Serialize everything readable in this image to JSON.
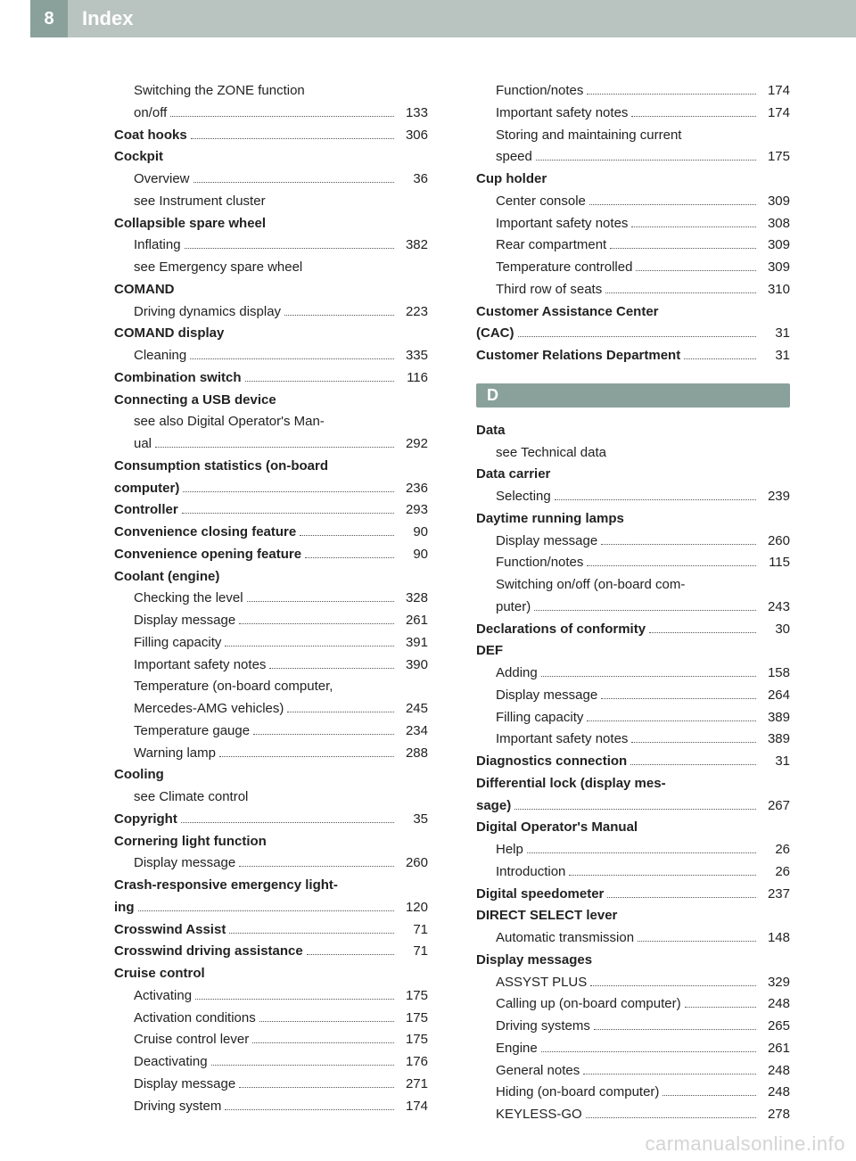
{
  "page_number": "8",
  "page_title": "Index",
  "watermark": "carmanualsonline.info",
  "letter_d": "D",
  "left": [
    {
      "t": "sub",
      "label": "Switching the ZONE function",
      "nopage": true
    },
    {
      "t": "sub",
      "label": "on/off",
      "page": "133"
    },
    {
      "t": "top",
      "bold": true,
      "label": "Coat hooks",
      "page": "306"
    },
    {
      "t": "top",
      "bold": true,
      "label": "Cockpit",
      "nopage": true
    },
    {
      "t": "sub",
      "label": "Overview",
      "page": "36"
    },
    {
      "t": "sub",
      "label": "see Instrument cluster",
      "nopage": true
    },
    {
      "t": "top",
      "bold": true,
      "label": "Collapsible spare wheel",
      "nopage": true
    },
    {
      "t": "sub",
      "label": "Inflating",
      "page": "382"
    },
    {
      "t": "sub",
      "label": "see Emergency spare wheel",
      "nopage": true
    },
    {
      "t": "top",
      "bold": true,
      "label": "COMAND",
      "nopage": true
    },
    {
      "t": "sub",
      "label": "Driving dynamics display",
      "page": "223"
    },
    {
      "t": "top",
      "bold": true,
      "label": "COMAND display",
      "nopage": true
    },
    {
      "t": "sub",
      "label": "Cleaning",
      "page": "335"
    },
    {
      "t": "top",
      "bold": true,
      "label": "Combination switch",
      "page": "116"
    },
    {
      "t": "top",
      "bold": true,
      "label": "Connecting a USB device",
      "nopage": true
    },
    {
      "t": "sub",
      "label": "see also Digital Operator's Man-",
      "nopage": true
    },
    {
      "t": "sub",
      "label": "ual",
      "page": "292"
    },
    {
      "t": "top",
      "bold": true,
      "label": "Consumption statistics (on-board",
      "nopage": true
    },
    {
      "t": "top",
      "bold": true,
      "label": "computer)",
      "page": "236"
    },
    {
      "t": "top",
      "bold": true,
      "label": "Controller",
      "page": "293"
    },
    {
      "t": "top",
      "bold": true,
      "label": "Convenience closing feature",
      "page": "90"
    },
    {
      "t": "top",
      "bold": true,
      "label": "Convenience opening feature",
      "page": "90"
    },
    {
      "t": "top",
      "bold": true,
      "label": "Coolant (engine)",
      "nopage": true
    },
    {
      "t": "sub",
      "label": "Checking the level",
      "page": "328"
    },
    {
      "t": "sub",
      "label": "Display message",
      "page": "261"
    },
    {
      "t": "sub",
      "label": "Filling capacity",
      "page": "391"
    },
    {
      "t": "sub",
      "label": "Important safety notes",
      "page": "390"
    },
    {
      "t": "sub",
      "label": "Temperature (on-board computer,",
      "nopage": true
    },
    {
      "t": "sub",
      "label": "Mercedes-AMG vehicles)",
      "page": "245"
    },
    {
      "t": "sub",
      "label": "Temperature gauge",
      "page": "234"
    },
    {
      "t": "sub",
      "label": "Warning lamp",
      "page": "288"
    },
    {
      "t": "top",
      "bold": true,
      "label": "Cooling",
      "nopage": true
    },
    {
      "t": "sub",
      "label": "see Climate control",
      "nopage": true
    },
    {
      "t": "top",
      "bold": true,
      "label": "Copyright",
      "page": "35"
    },
    {
      "t": "top",
      "bold": true,
      "label": "Cornering light function",
      "nopage": true
    },
    {
      "t": "sub",
      "label": "Display message",
      "page": "260"
    },
    {
      "t": "top",
      "bold": true,
      "label": "Crash-responsive emergency light-",
      "nopage": true
    },
    {
      "t": "top",
      "bold": true,
      "label": "ing",
      "page": "120"
    },
    {
      "t": "top",
      "bold": true,
      "label": "Crosswind Assist",
      "page": "71"
    },
    {
      "t": "top",
      "bold": true,
      "label": "Crosswind driving assistance",
      "page": "71"
    },
    {
      "t": "top",
      "bold": true,
      "label": "Cruise control",
      "nopage": true
    },
    {
      "t": "sub",
      "label": "Activating",
      "page": "175"
    },
    {
      "t": "sub",
      "label": "Activation conditions",
      "page": "175"
    },
    {
      "t": "sub",
      "label": "Cruise control lever",
      "page": "175"
    },
    {
      "t": "sub",
      "label": "Deactivating",
      "page": "176"
    },
    {
      "t": "sub",
      "label": "Display message",
      "page": "271"
    },
    {
      "t": "sub",
      "label": "Driving system",
      "page": "174"
    }
  ],
  "right_a": [
    {
      "t": "sub",
      "label": "Function/notes",
      "page": "174"
    },
    {
      "t": "sub",
      "label": "Important safety notes",
      "page": "174"
    },
    {
      "t": "sub",
      "label": "Storing and maintaining current",
      "nopage": true
    },
    {
      "t": "sub",
      "label": "speed",
      "page": "175"
    },
    {
      "t": "top",
      "bold": true,
      "label": "Cup holder",
      "nopage": true
    },
    {
      "t": "sub",
      "label": "Center console",
      "page": "309"
    },
    {
      "t": "sub",
      "label": "Important safety notes",
      "page": "308"
    },
    {
      "t": "sub",
      "label": "Rear compartment",
      "page": "309"
    },
    {
      "t": "sub",
      "label": "Temperature controlled",
      "page": "309"
    },
    {
      "t": "sub",
      "label": "Third row of seats",
      "page": "310"
    },
    {
      "t": "top",
      "bold": true,
      "label": "Customer Assistance Center",
      "nopage": true
    },
    {
      "t": "top",
      "bold": true,
      "label": "(CAC)",
      "page": "31"
    },
    {
      "t": "top",
      "bold": true,
      "label": "Customer Relations Department",
      "page": "31"
    }
  ],
  "right_b": [
    {
      "t": "top",
      "bold": true,
      "label": "Data",
      "nopage": true
    },
    {
      "t": "sub",
      "label": "see Technical data",
      "nopage": true
    },
    {
      "t": "top",
      "bold": true,
      "label": "Data carrier",
      "nopage": true
    },
    {
      "t": "sub",
      "label": "Selecting",
      "page": "239"
    },
    {
      "t": "top",
      "bold": true,
      "label": "Daytime running lamps",
      "nopage": true
    },
    {
      "t": "sub",
      "label": "Display message",
      "page": "260"
    },
    {
      "t": "sub",
      "label": "Function/notes",
      "page": "115"
    },
    {
      "t": "sub",
      "label": "Switching on/off (on-board com-",
      "nopage": true
    },
    {
      "t": "sub",
      "label": "puter)",
      "page": "243"
    },
    {
      "t": "top",
      "bold": true,
      "label": "Declarations of conformity",
      "page": "30"
    },
    {
      "t": "top",
      "bold": true,
      "label": "DEF",
      "nopage": true
    },
    {
      "t": "sub",
      "label": "Adding",
      "page": "158"
    },
    {
      "t": "sub",
      "label": "Display message",
      "page": "264"
    },
    {
      "t": "sub",
      "label": "Filling capacity",
      "page": "389"
    },
    {
      "t": "sub",
      "label": "Important safety notes",
      "page": "389"
    },
    {
      "t": "top",
      "bold": true,
      "label": "Diagnostics connection",
      "page": "31"
    },
    {
      "t": "top",
      "bold": true,
      "label": "Differential lock (display mes-",
      "nopage": true
    },
    {
      "t": "top",
      "bold": true,
      "label": "sage)",
      "page": "267"
    },
    {
      "t": "top",
      "bold": true,
      "label": "Digital Operator's Manual",
      "nopage": true
    },
    {
      "t": "sub",
      "label": "Help",
      "page": "26"
    },
    {
      "t": "sub",
      "label": "Introduction",
      "page": "26"
    },
    {
      "t": "top",
      "bold": true,
      "label": "Digital speedometer",
      "page": "237"
    },
    {
      "t": "top",
      "bold": true,
      "label": "DIRECT SELECT lever",
      "nopage": true
    },
    {
      "t": "sub",
      "label": "Automatic transmission",
      "page": "148"
    },
    {
      "t": "top",
      "bold": true,
      "label": "Display messages",
      "nopage": true
    },
    {
      "t": "sub",
      "label": "ASSYST PLUS",
      "page": "329"
    },
    {
      "t": "sub",
      "label": "Calling up (on-board computer)",
      "page": "248"
    },
    {
      "t": "sub",
      "label": "Driving systems",
      "page": "265"
    },
    {
      "t": "sub",
      "label": "Engine",
      "page": "261"
    },
    {
      "t": "sub",
      "label": "General notes",
      "page": "248"
    },
    {
      "t": "sub",
      "label": "Hiding (on-board computer)",
      "page": "248"
    },
    {
      "t": "sub",
      "label": "KEYLESS-GO",
      "page": "278"
    }
  ]
}
